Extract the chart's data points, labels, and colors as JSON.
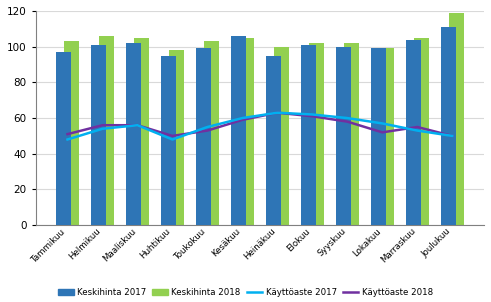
{
  "months": [
    "Tammikuu",
    "Helmikuu",
    "Maaliskuu",
    "Huhtikuu",
    "Toukokuu",
    "Kesäkuu",
    "Heinäkuu",
    "Elokuu",
    "Syyskuu",
    "Lokakuu",
    "Marraskuu",
    "Joulukuu"
  ],
  "keskihinta_2017": [
    97,
    101,
    102,
    95,
    99,
    106,
    95,
    101,
    100,
    99,
    104,
    111
  ],
  "keskihinta_2018": [
    103,
    106,
    105,
    98,
    103,
    105,
    100,
    102,
    102,
    99,
    105,
    119
  ],
  "kayttaste_2017": [
    48,
    54,
    56,
    48,
    55,
    60,
    63,
    62,
    60,
    57,
    53,
    50
  ],
  "kayttaste_2018": [
    51,
    56,
    56,
    50,
    53,
    59,
    63,
    61,
    58,
    52,
    55,
    50
  ],
  "bar_color_2017": "#2E75B6",
  "bar_color_2018": "#92D050",
  "line_color_2017": "#00B0F0",
  "line_color_2018": "#7030A0",
  "ylim": [
    0,
    120
  ],
  "yticks": [
    0,
    20,
    40,
    60,
    80,
    100,
    120
  ],
  "legend_labels": [
    "Keskihinta 2017",
    "Keskihinta 2018",
    "Käyttöaste 2017",
    "Käyttöaste 2018"
  ],
  "background_color": "#ffffff",
  "grid_color": "#d9d9d9"
}
